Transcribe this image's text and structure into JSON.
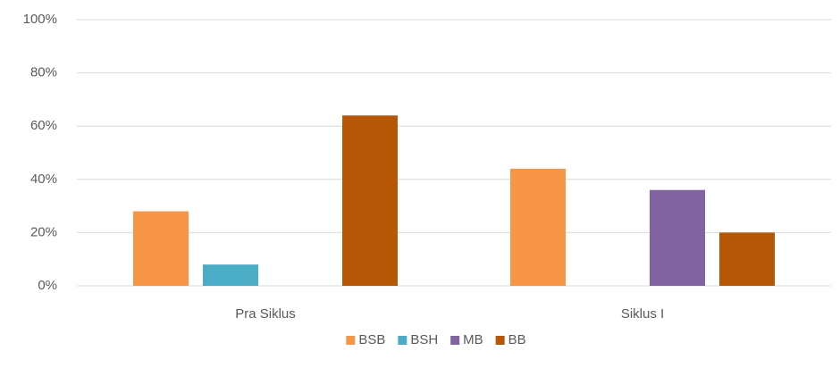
{
  "chart_data": {
    "type": "bar",
    "categories": [
      "Pra Siklus",
      "Siklus I"
    ],
    "series": [
      {
        "name": "BSB",
        "color": "#f79646",
        "values": [
          28,
          44
        ]
      },
      {
        "name": "BSH",
        "color": "#4bacc6",
        "values": [
          8,
          0
        ]
      },
      {
        "name": "MB",
        "color": "#8064a2",
        "values": [
          0,
          36
        ]
      },
      {
        "name": "BB",
        "color": "#b65708",
        "values": [
          64,
          20
        ]
      }
    ],
    "ylim": [
      0,
      100
    ],
    "yticks": [
      {
        "value": 0,
        "label": "0%"
      },
      {
        "value": 20,
        "label": "20%"
      },
      {
        "value": 40,
        "label": "40%"
      },
      {
        "value": 60,
        "label": "60%"
      },
      {
        "value": 80,
        "label": "80%"
      },
      {
        "value": 100,
        "label": "100%"
      }
    ],
    "grid": true,
    "legend": "bottom"
  }
}
